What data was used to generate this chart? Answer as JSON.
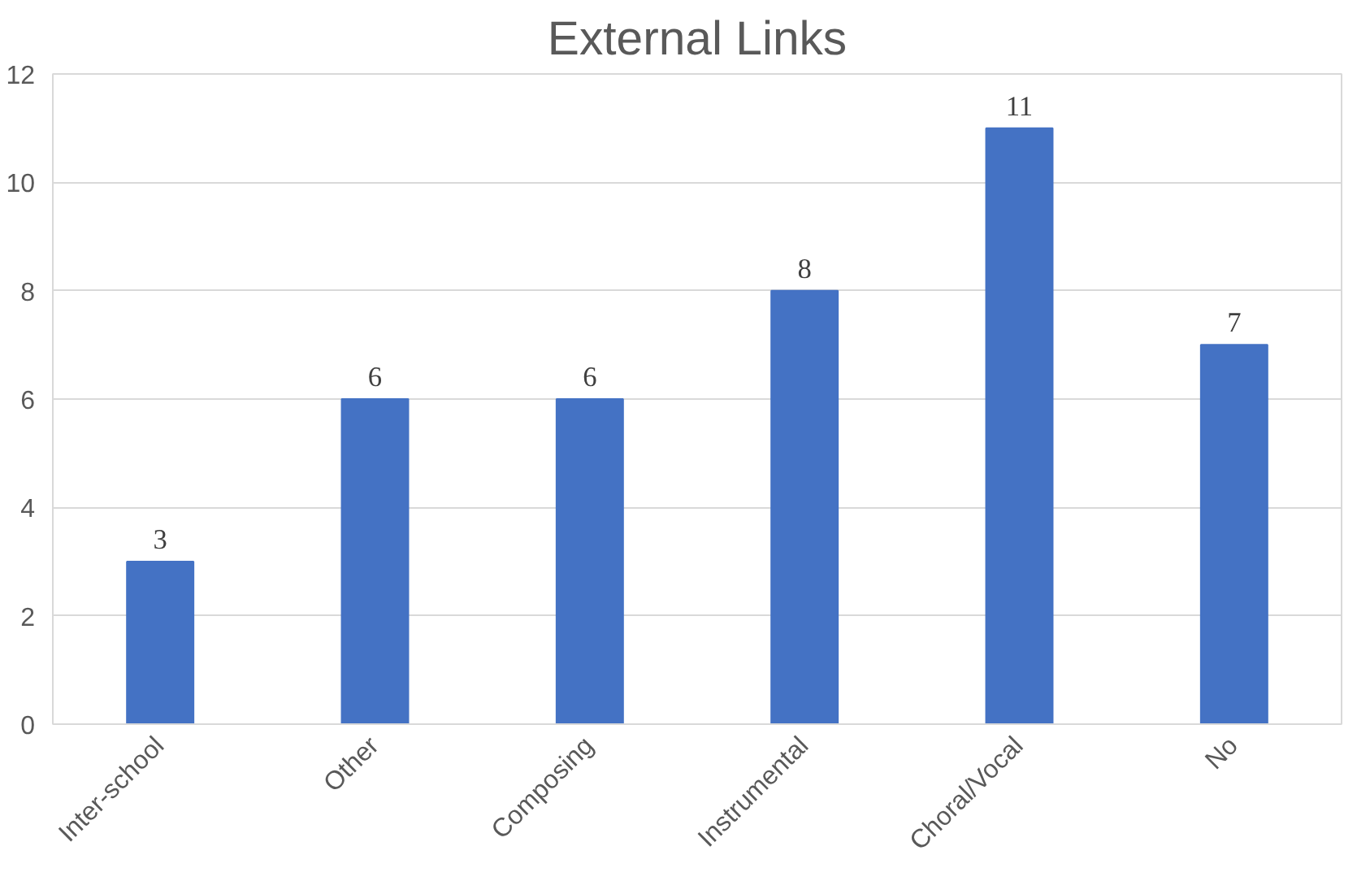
{
  "chart_data": {
    "type": "bar",
    "title": "External Links",
    "categories": [
      "Inter-school",
      "Other",
      "Composing",
      "Instrumental",
      "Choral/Vocal",
      "No"
    ],
    "values": [
      3,
      6,
      6,
      8,
      11,
      7
    ],
    "color": "#4472c4",
    "ylim": [
      0,
      12
    ],
    "yticks": [
      0,
      2,
      4,
      6,
      8,
      10,
      12
    ],
    "grid": "y",
    "data_labels": true
  }
}
